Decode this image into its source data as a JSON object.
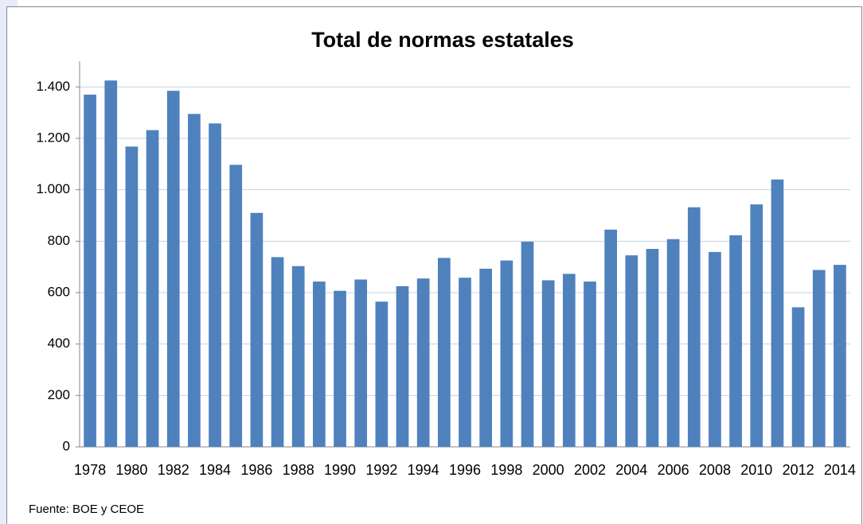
{
  "chart_data": {
    "type": "bar",
    "title": "Total de normas estatales",
    "source": "Fuente: BOE y CEOE",
    "categories": [
      "1978",
      null,
      "1980",
      null,
      "1982",
      null,
      "1984",
      null,
      "1986",
      null,
      "1988",
      null,
      "1990",
      null,
      "1992",
      null,
      "1994",
      null,
      "1996",
      null,
      "1998",
      null,
      "2000",
      null,
      "2002",
      null,
      "2004",
      null,
      "2006",
      null,
      "2008",
      null,
      "2010",
      null,
      "2012",
      null,
      "2014"
    ],
    "values": [
      1370,
      1425,
      1168,
      1232,
      1385,
      1295,
      1258,
      1097,
      910,
      738,
      703,
      643,
      607,
      651,
      565,
      625,
      655,
      735,
      658,
      693,
      725,
      798,
      648,
      673,
      643,
      845,
      745,
      770,
      808,
      932,
      758,
      823,
      943,
      1040,
      543,
      688,
      708
    ],
    "color": "#4f81bd",
    "ylim": [
      0,
      1500
    ],
    "yticks": [
      0,
      200,
      400,
      600,
      800,
      {
        "value": 1000,
        "label": "1.000"
      },
      {
        "value": 1200,
        "label": "1.200"
      },
      {
        "value": 1400,
        "label": "1.400"
      }
    ],
    "grid": true
  }
}
